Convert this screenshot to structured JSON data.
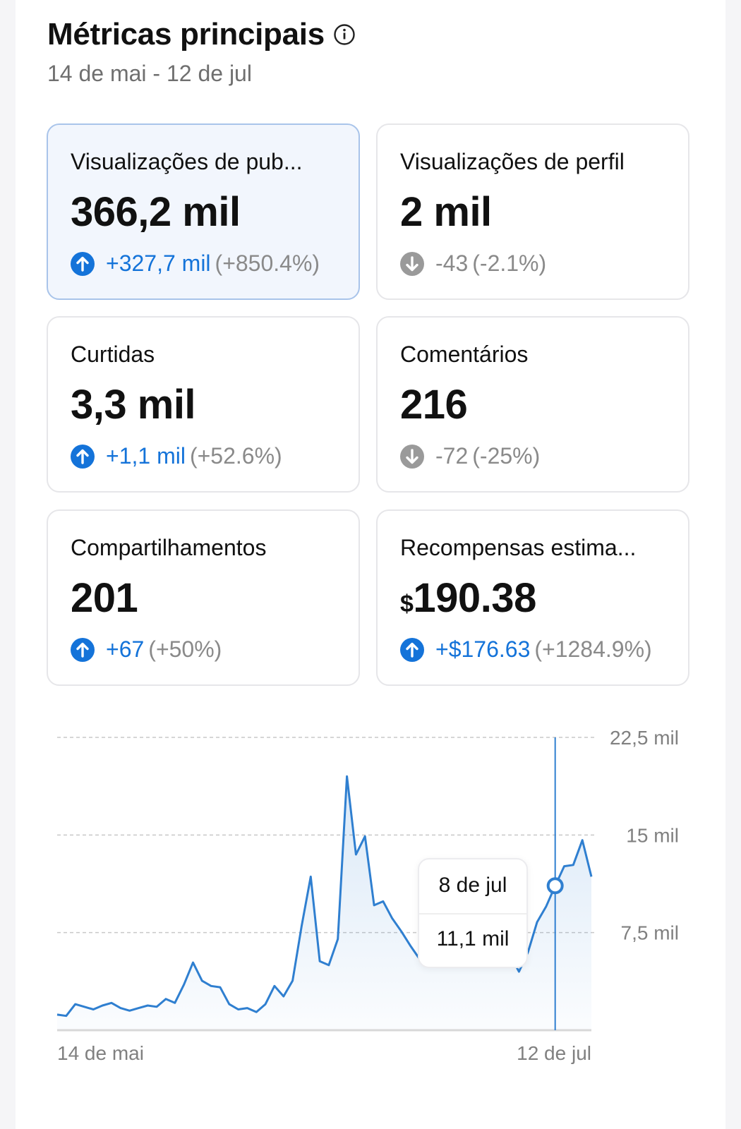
{
  "header": {
    "title": "Métricas principais",
    "date_range": "14 de mai - 12 de jul"
  },
  "metrics": [
    {
      "label": "Visualizações de pub...",
      "value": "366,2 mil",
      "delta": "+327,7 mil",
      "pct": "(+850.4%)",
      "trend": "up",
      "active": true
    },
    {
      "label": "Visualizações de perfil",
      "value": "2 mil",
      "delta": "-43",
      "pct": "(-2.1%)",
      "trend": "down"
    },
    {
      "label": "Curtidas",
      "value": "3,3 mil",
      "delta": "+1,1 mil",
      "pct": "(+52.6%)",
      "trend": "up"
    },
    {
      "label": "Comentários",
      "value": "216",
      "delta": "-72",
      "pct": "(-25%)",
      "trend": "down"
    },
    {
      "label": "Compartilhamentos",
      "value": "201",
      "delta": "+67",
      "pct": "(+50%)",
      "trend": "up"
    },
    {
      "label": "Recompensas estima...",
      "currency": "$",
      "value": "190.38",
      "delta": "+$176.63",
      "pct": "(+1284.9%)",
      "trend": "up"
    }
  ],
  "colors": {
    "accent": "#1473d9",
    "line": "#2f7fd0",
    "negative": "#8a8a8a"
  },
  "icons": {
    "info": "info-icon",
    "up": "arrow-up-circle-icon",
    "down": "arrow-down-circle-icon"
  },
  "tooltip": {
    "date": "8 de jul",
    "value": "11,1 mil"
  },
  "chart_data": {
    "type": "area",
    "x_tick_labels": [
      "14 de mai",
      "12 de jul"
    ],
    "y_tick_labels": [
      "22,5 mil",
      "15 mil",
      "7,5 mil"
    ],
    "y_ticks": [
      22500,
      15000,
      7500
    ],
    "ylim": [
      0,
      22500
    ],
    "grid": true,
    "y_axis_position": "right",
    "highlight_index": 55,
    "values": [
      1200,
      1100,
      2000,
      1800,
      1600,
      1900,
      2100,
      1700,
      1500,
      1700,
      1900,
      1800,
      2400,
      2100,
      3500,
      5200,
      3800,
      3400,
      3300,
      2000,
      1600,
      1700,
      1400,
      2000,
      3400,
      2600,
      3800,
      8000,
      11800,
      5300,
      5000,
      7000,
      19500,
      13500,
      14900,
      9600,
      9900,
      8600,
      7600,
      6500,
      5500,
      5300,
      5600,
      6800,
      7000,
      5500,
      4900,
      5400,
      5000,
      5900,
      5800,
      4500,
      6000,
      8300,
      9500,
      11100,
      12600,
      12700,
      14600,
      11800
    ]
  }
}
